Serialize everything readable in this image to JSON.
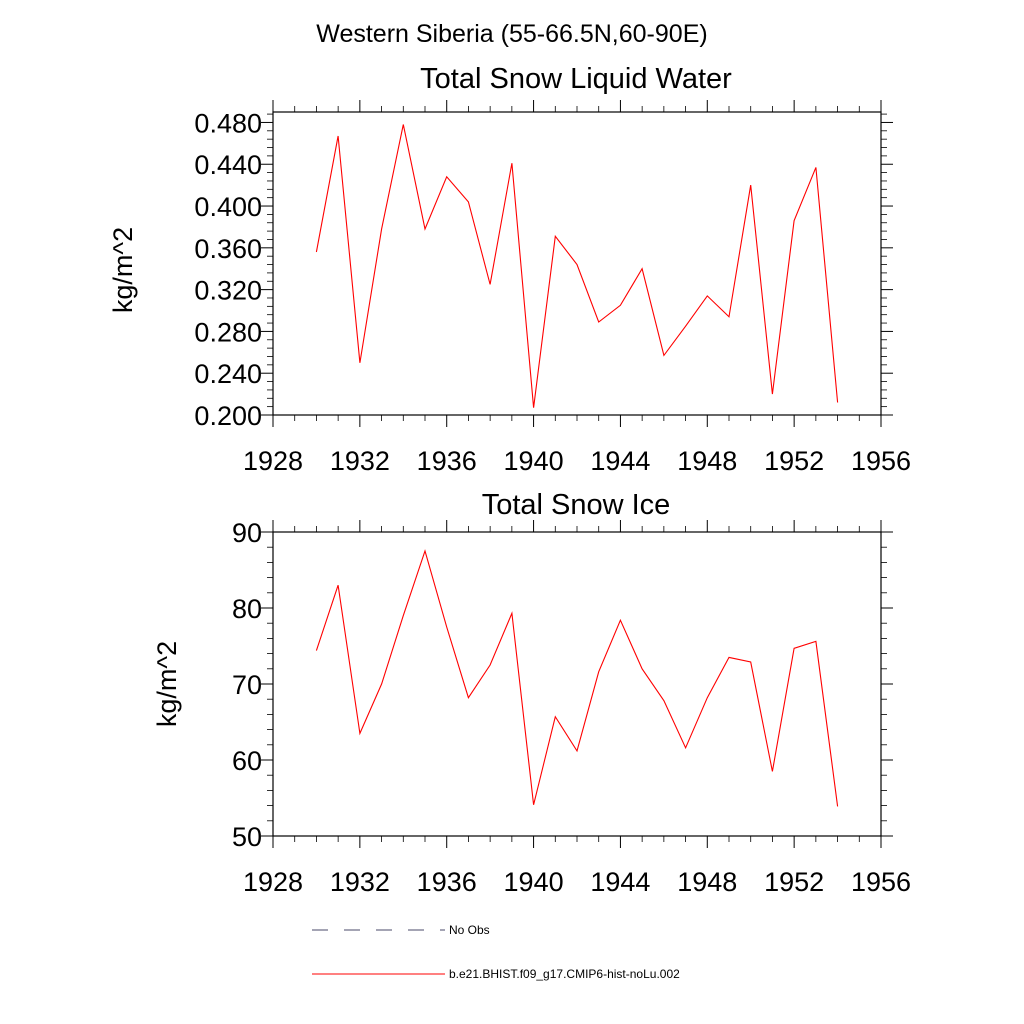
{
  "figure": {
    "suptitle": "Western Siberia (55-66.5N,60-90E)"
  },
  "chart_data": [
    {
      "type": "line",
      "title": "Total Snow Liquid Water",
      "xlabel": "",
      "ylabel": "kg/m^2",
      "xlim": [
        1928,
        1956
      ],
      "ylim": [
        0.2,
        0.49
      ],
      "xticks": [
        "1928",
        "1932",
        "1936",
        "1940",
        "1944",
        "1948",
        "1952",
        "1956"
      ],
      "yticks": [
        "0.200",
        "0.240",
        "0.280",
        "0.320",
        "0.360",
        "0.400",
        "0.440",
        "0.480"
      ],
      "grid": false,
      "x": [
        1930,
        1931,
        1932,
        1933,
        1934,
        1935,
        1936,
        1937,
        1938,
        1939,
        1940,
        1941,
        1942,
        1943,
        1944,
        1945,
        1946,
        1947,
        1948,
        1949,
        1950,
        1951,
        1952,
        1953,
        1954
      ],
      "series": [
        {
          "name": "b.e21.BHIST.f09_g17.CMIP6-hist-noLu.002",
          "color": "#ff0000",
          "values": [
            0.356,
            0.467,
            0.25,
            0.378,
            0.478,
            0.378,
            0.428,
            0.404,
            0.325,
            0.441,
            0.207,
            0.371,
            0.344,
            0.289,
            0.305,
            0.34,
            0.257,
            0.285,
            0.314,
            0.294,
            0.42,
            0.22,
            0.386,
            0.437,
            0.212
          ]
        }
      ]
    },
    {
      "type": "line",
      "title": "Total Snow Ice",
      "xlabel": "",
      "ylabel": "kg/m^2",
      "xlim": [
        1928,
        1956
      ],
      "ylim": [
        50,
        90
      ],
      "xticks": [
        "1928",
        "1932",
        "1936",
        "1940",
        "1944",
        "1948",
        "1952",
        "1956"
      ],
      "yticks": [
        "50",
        "60",
        "70",
        "80",
        "90"
      ],
      "grid": false,
      "x": [
        1930,
        1931,
        1932,
        1933,
        1934,
        1935,
        1936,
        1937,
        1938,
        1939,
        1940,
        1941,
        1942,
        1943,
        1944,
        1945,
        1946,
        1947,
        1948,
        1949,
        1950,
        1951,
        1952,
        1953,
        1954
      ],
      "series": [
        {
          "name": "b.e21.BHIST.f09_g17.CMIP6-hist-noLu.002",
          "color": "#ff0000",
          "values": [
            74.4,
            83.0,
            63.5,
            70.0,
            79.0,
            87.5,
            77.5,
            68.2,
            72.5,
            79.3,
            54.1,
            65.7,
            61.2,
            71.6,
            78.4,
            72.0,
            67.8,
            61.6,
            68.2,
            73.5,
            72.9,
            58.5,
            74.7,
            75.6,
            53.9
          ]
        }
      ]
    }
  ],
  "legend": {
    "items": [
      {
        "label": "No Obs",
        "style": "dashed",
        "color": "#4a4a6a"
      },
      {
        "label": "b.e21.BHIST.f09_g17.CMIP6-hist-noLu.002",
        "style": "solid",
        "color": "#ff0000"
      }
    ]
  }
}
